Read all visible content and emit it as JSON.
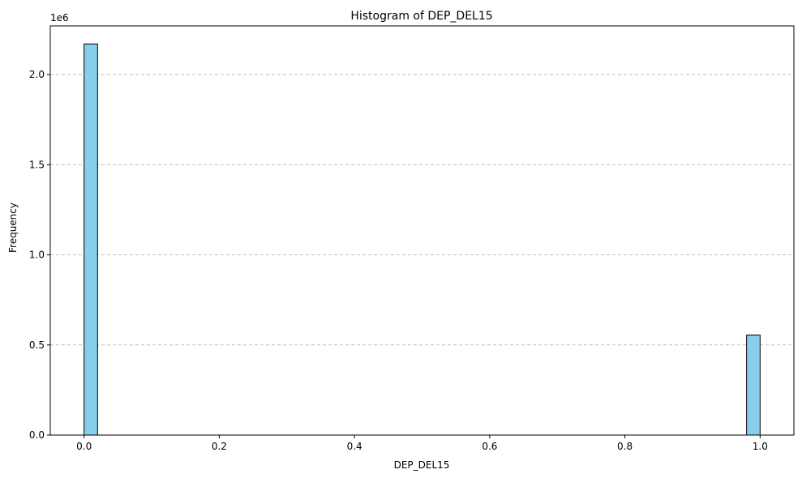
{
  "chart_data": {
    "type": "bar",
    "title": "Histogram of DEP_DEL15",
    "xlabel": "DEP_DEL15",
    "ylabel": "Frequency",
    "y_scale_note": "1e6",
    "bins": 50,
    "bin_range": [
      0.0,
      1.0
    ],
    "xlim": [
      -0.05,
      1.05
    ],
    "ylim": [
      0,
      2270000
    ],
    "x_ticks": [
      0.0,
      0.2,
      0.4,
      0.6,
      0.8,
      1.0
    ],
    "x_tick_labels": [
      "0.0",
      "0.2",
      "0.4",
      "0.6",
      "0.8",
      "1.0"
    ],
    "y_ticks": [
      0,
      500000,
      1000000,
      1500000,
      2000000
    ],
    "y_tick_labels": [
      "0.0",
      "0.5",
      "1.0",
      "1.5",
      "2.0"
    ],
    "bars": [
      {
        "bin_start": 0.0,
        "bin_end": 0.02,
        "value": 2170000
      },
      {
        "bin_start": 0.98,
        "bin_end": 1.0,
        "value": 555000
      }
    ],
    "grid": {
      "y": true,
      "x": false,
      "style": "dashed"
    },
    "bar_color": "#87ceeb",
    "bar_edge_color": "#000000",
    "grid_color": "#bfbfbf"
  }
}
